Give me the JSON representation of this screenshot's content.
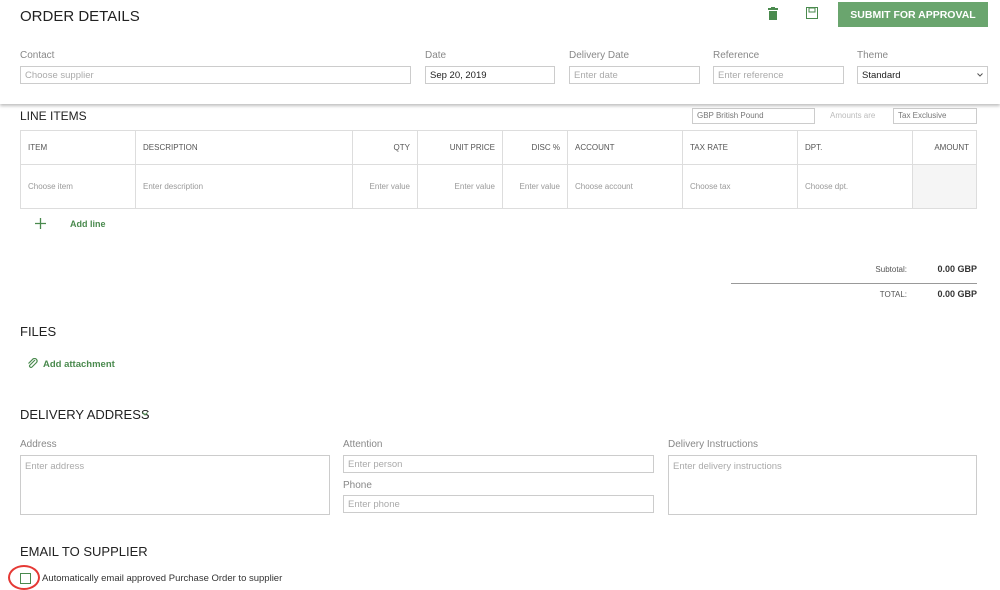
{
  "header": {
    "title": "ORDER DETAILS",
    "submit_label": "SUBMIT FOR APPROVAL",
    "icons": [
      "trash-icon",
      "save-icon"
    ],
    "fields": {
      "contact": {
        "label": "Contact",
        "placeholder": "Choose supplier"
      },
      "date": {
        "label": "Date",
        "value": "Sep 20, 2019"
      },
      "delivery_date": {
        "label": "Delivery Date",
        "placeholder": "Enter date"
      },
      "reference": {
        "label": "Reference",
        "placeholder": "Enter reference"
      },
      "theme": {
        "label": "Theme",
        "value": "Standard"
      }
    }
  },
  "line_items": {
    "title": "LINE ITEMS",
    "currency": "GBP British Pound",
    "amounts_label": "Amounts are",
    "tax_mode": "Tax Exclusive",
    "columns": [
      "ITEM",
      "DESCRIPTION",
      "QTY",
      "UNIT PRICE",
      "DISC %",
      "ACCOUNT",
      "TAX RATE",
      "DPT.",
      "AMOUNT"
    ],
    "row": [
      "Choose item",
      "Enter description",
      "Enter value",
      "Enter value",
      "Enter value",
      "Choose account",
      "Choose tax",
      "Choose dpt.",
      ""
    ],
    "add_line": "Add line",
    "subtotal_label": "Subtotal:",
    "subtotal": "0.00 GBP",
    "total_label": "TOTAL:",
    "total": "0.00 GBP"
  },
  "files": {
    "title": "FILES",
    "add_attachment": "Add attachment"
  },
  "delivery": {
    "title": "DELIVERY ADDRESS",
    "address_label": "Address",
    "address_placeholder": "Enter address",
    "attention_label": "Attention",
    "attention_placeholder": "Enter person",
    "phone_label": "Phone",
    "phone_placeholder": "Enter phone",
    "instructions_label": "Delivery Instructions",
    "instructions_placeholder": "Enter delivery instructions"
  },
  "email": {
    "title": "EMAIL TO SUPPLIER",
    "checkbox_label": "Automatically email approved Purchase Order to supplier",
    "checked": false
  },
  "colors": {
    "accent": "#6aa56e",
    "highlight": "#e53935"
  }
}
